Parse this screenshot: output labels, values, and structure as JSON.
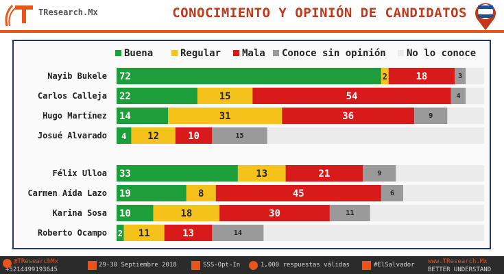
{
  "header": {
    "brand": "TResearch.Mx",
    "title": "CONOCIMIENTO Y OPINIÓN DE CANDIDATOS"
  },
  "footer": {
    "twitter": "@TResearchMx",
    "phone": "+5214499193645",
    "date": "29-30 Septiembre 2018",
    "method": "SSS-Opt-In",
    "responses": "1,000 respuestas válidas",
    "hashtag": "#ElSalvador",
    "website": "www.TResearch.Mx",
    "slogan": "BETTER UNDERSTAND"
  },
  "chart_data": {
    "type": "bar",
    "orientation": "horizontal",
    "stacked": true,
    "legend_position": "top",
    "xlim": [
      0,
      100
    ],
    "categories": [
      "Nayib Bukele",
      "Carlos Calleja",
      "Hugo Martínez",
      "Josué Alvarado",
      "Félix Ulloa",
      "Carmen Aída Lazo",
      "Karina Sosa",
      "Roberto Ocampo"
    ],
    "groups": [
      [
        0,
        1,
        2,
        3
      ],
      [
        4,
        5,
        6,
        7
      ]
    ],
    "series": [
      {
        "name": "Buena",
        "color": "#1e9e3a",
        "values": [
          72,
          22,
          14,
          4,
          33,
          19,
          10,
          2
        ]
      },
      {
        "name": "Regular",
        "color": "#f5c21b",
        "values": [
          2,
          15,
          31,
          12,
          13,
          8,
          18,
          11
        ]
      },
      {
        "name": "Mala",
        "color": "#d91a1a",
        "values": [
          18,
          54,
          36,
          10,
          21,
          45,
          30,
          13
        ]
      },
      {
        "name": "Conoce sin opinión",
        "color": "#9a9a9a",
        "values": [
          3,
          4,
          9,
          15,
          9,
          6,
          11,
          14
        ]
      },
      {
        "name": "No lo conoce",
        "color": "#ebebeb",
        "values": [
          5,
          5,
          10,
          59,
          24,
          22,
          31,
          60
        ]
      }
    ]
  }
}
